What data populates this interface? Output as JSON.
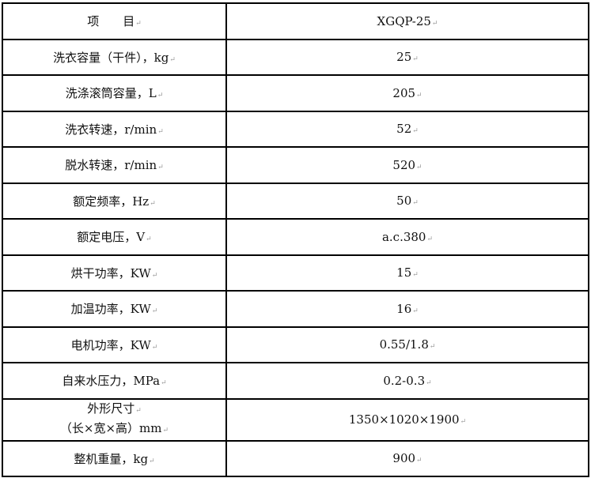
{
  "table": {
    "header": {
      "item": "项　　目",
      "model": "XGQP-25"
    },
    "rows": [
      {
        "item": "洗衣容量（干件），kg",
        "value": "25"
      },
      {
        "item": "洗涤滚筒容量，L",
        "value": "205"
      },
      {
        "item": "洗衣转速，r/min",
        "value": "52"
      },
      {
        "item": "脱水转速，r/min",
        "value": "520"
      },
      {
        "item": "额定频率，Hz",
        "value": "50"
      },
      {
        "item": "额定电压，V",
        "value": "a.c.380"
      },
      {
        "item": "烘干功率，KW",
        "value": "15"
      },
      {
        "item": "加温功率，KW",
        "value": "16"
      },
      {
        "item": "电机功率，KW",
        "value": "0.55/1.8"
      },
      {
        "item": "自来水压力，MPa",
        "value": "0.2-0.3"
      }
    ],
    "size_row": {
      "item_line1": "外形尺寸",
      "item_line2": "（长×宽×高）mm",
      "value": "1350×1020×1900"
    },
    "last_row": {
      "item": "整机重量，kg",
      "value": "900"
    }
  }
}
